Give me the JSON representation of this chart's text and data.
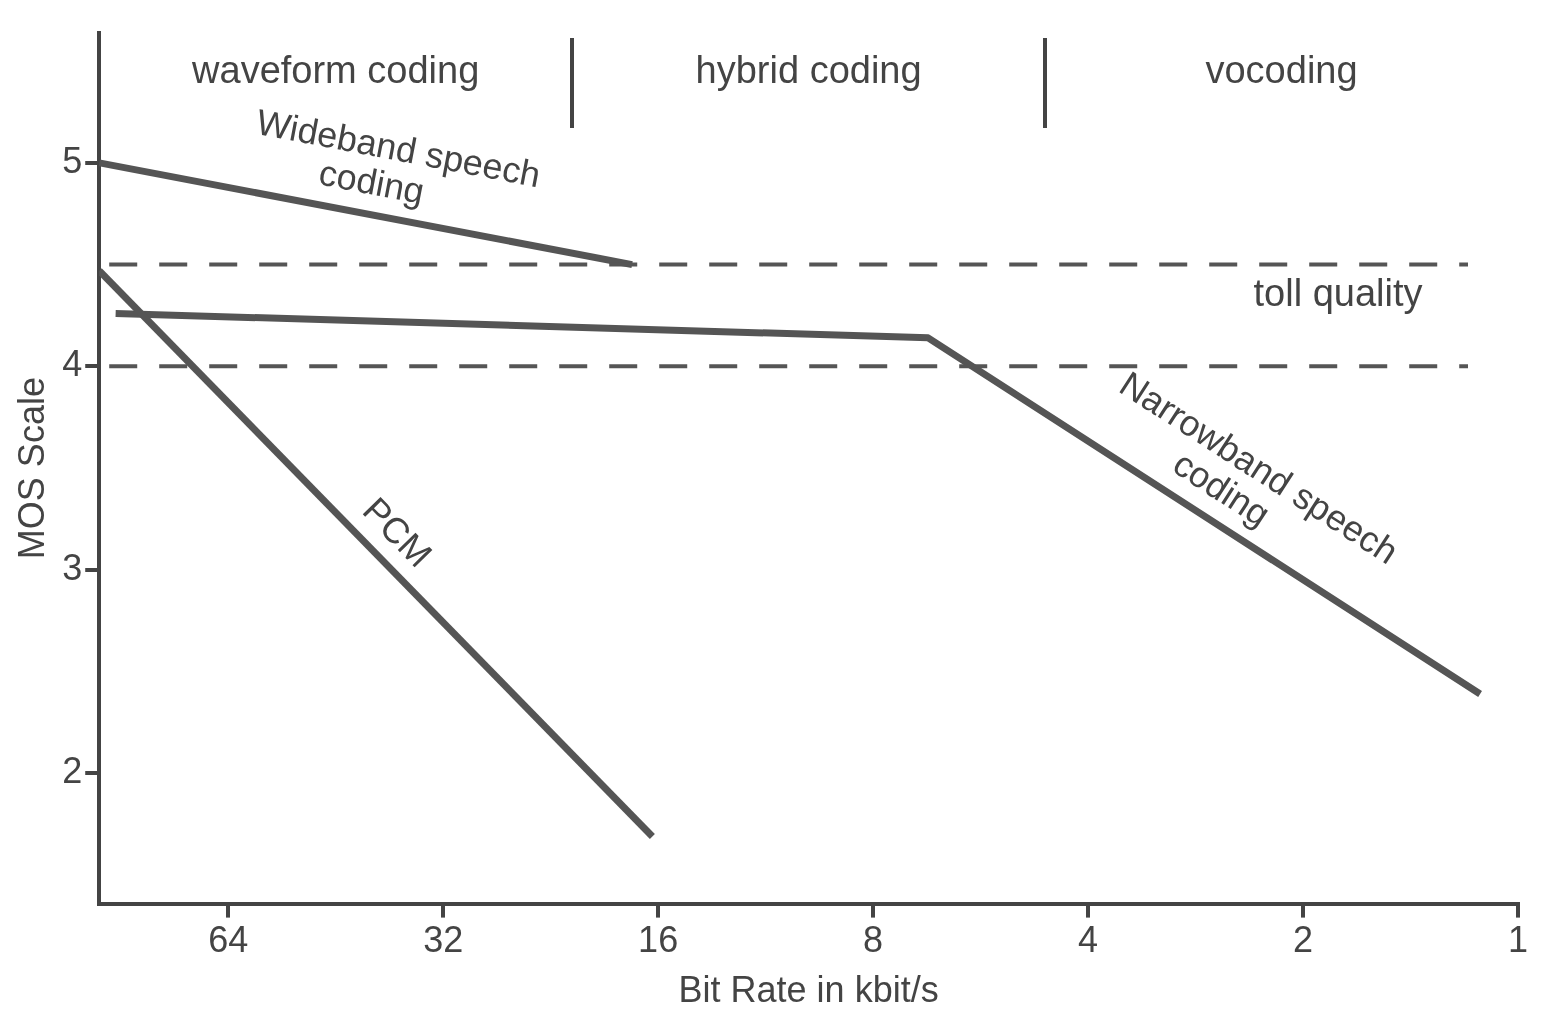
{
  "chart_data": {
    "type": "line",
    "xlabel": "Bit Rate in kbit/s",
    "ylabel": "MOS Scale",
    "log": "x",
    "xlim": [
      97,
      1
    ],
    "xticks": [
      64,
      32,
      16,
      8,
      4,
      2,
      1
    ],
    "ylim": [
      1.36,
      5.64
    ],
    "yticks": [
      2,
      3,
      4,
      5
    ],
    "grid": false,
    "legend": false,
    "marker": "none",
    "line_style": "solid",
    "series": [
      {
        "name": "Wideband speech coding",
        "color": "#555555",
        "x": [
          97,
          17.4
        ],
        "values": [
          5.0,
          4.5
        ]
      },
      {
        "name": "PCM",
        "color": "#555555",
        "x": [
          97,
          16.3
        ],
        "values": [
          4.47,
          1.69
        ]
      },
      {
        "name": "Narrowband speech coding",
        "color": "#555555",
        "x": [
          92,
          6.7,
          1.13
        ],
        "values": [
          4.26,
          4.14,
          2.39
        ]
      }
    ],
    "ref_lines": [
      {
        "axis": "y",
        "value": 4.5,
        "line_style": "dashed",
        "color": "#555555",
        "label": "toll quality"
      },
      {
        "axis": "y",
        "value": 4,
        "line_style": "dashed",
        "color": "#555555"
      }
    ],
    "annotations": [
      "waveform coding",
      "hybrid coding",
      "vocoding"
    ]
  }
}
